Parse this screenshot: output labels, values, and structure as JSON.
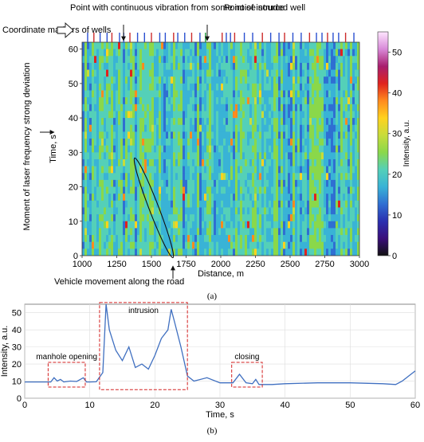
{
  "colors": {
    "series": "#3f6fc0",
    "callout_box": "#d42020",
    "marker_blue": "#2a4fd0",
    "marker_red": "#cc2b2b",
    "marker_green": "#1f9a3a",
    "grid": "#dddddd"
  },
  "annotations_top": {
    "markers_label": "Coordinate markers of wells",
    "noise_point": "Point with continuous vibration from some noise source",
    "intruded_well": "Point of intruded well",
    "laser_deviation": "Moment of laser frequency strong deviation",
    "vehicle": "Vehicle movement along the road"
  },
  "panel_labels": {
    "a": "(a)",
    "b": "(b)"
  },
  "chart_data": [
    {
      "type": "heatmap",
      "xlabel": "Distance, m",
      "ylabel": "Time, s",
      "colorbar_label": "Intensity, a.u.",
      "xlim": [
        1000,
        3000
      ],
      "ylim": [
        0,
        62
      ],
      "clim": [
        0,
        55
      ],
      "xticks": [
        1000,
        1250,
        1500,
        1750,
        2000,
        2250,
        2500,
        2750,
        3000
      ],
      "yticks": [
        0,
        10,
        20,
        30,
        40,
        50,
        60
      ],
      "cticks": [
        0,
        10,
        20,
        30,
        40,
        50
      ],
      "colormap": [
        "#111111",
        "#3a0e7a",
        "#2a2fb0",
        "#2f6fd2",
        "#39b3d6",
        "#54d0b8",
        "#8ad84a",
        "#c8dc3a",
        "#ffd21e",
        "#ff8a1e",
        "#e0221e",
        "#a81e6e",
        "#d88ad8",
        "#ffe6ff"
      ],
      "well_markers_m": [
        1040,
        1085,
        1130,
        1180,
        1215,
        1270,
        1300,
        1345,
        1400,
        1450,
        1500,
        1560,
        1600,
        1660,
        1690,
        1740,
        1790,
        1850,
        1890,
        2010,
        2040,
        2070,
        2100,
        2170,
        2230,
        2300,
        2360,
        2420,
        2460,
        2520,
        2580,
        2640,
        2690,
        2730,
        2770,
        2810,
        2850,
        2900,
        2960
      ],
      "noise_source_m": 1300,
      "intruded_well_m": 1890,
      "laser_deviation_s": 33,
      "vehicle_track": {
        "start": [
          1420,
          27
        ],
        "end": [
          1660,
          0
        ]
      }
    },
    {
      "type": "line",
      "xlabel": "Time, s",
      "ylabel": "Intensity, a.u.",
      "xlim": [
        0,
        60
      ],
      "ylim": [
        0,
        55
      ],
      "xticks": [
        0,
        10,
        20,
        30,
        40,
        50,
        60
      ],
      "yticks": [
        0,
        10,
        20,
        30,
        40,
        50
      ],
      "grid": true,
      "series": [
        {
          "x": [
            0,
            4,
            4.5,
            5,
            5.5,
            6,
            7,
            8,
            9,
            9.5,
            10,
            11,
            12,
            12.5,
            13,
            14,
            15,
            16,
            17,
            18,
            19,
            20,
            21,
            22,
            22.5,
            23,
            24,
            25,
            26,
            28,
            30,
            32,
            33,
            34,
            35,
            35.5,
            36,
            38,
            40,
            45,
            50,
            55,
            57,
            58,
            59,
            60
          ],
          "y": [
            9.5,
            9.5,
            12,
            10,
            11,
            9.5,
            10,
            9.8,
            12,
            9.5,
            9.5,
            9.6,
            15,
            55,
            40,
            28,
            22,
            30,
            18,
            20,
            17,
            25,
            35,
            40,
            52,
            45,
            30,
            13,
            10,
            12,
            9,
            9,
            14,
            9,
            8.5,
            11,
            8,
            8,
            8.5,
            9,
            9,
            8.5,
            8,
            10,
            13,
            16
          ]
        }
      ],
      "callouts": [
        {
          "label": "manhole opening",
          "x_range": [
            3.6,
            9.3
          ],
          "y_range": [
            6.5,
            21
          ]
        },
        {
          "label": "intrusion",
          "x_range": [
            11.5,
            25
          ],
          "y_range": [
            5,
            56
          ]
        },
        {
          "label": "closing",
          "x_range": [
            31.8,
            36.5
          ],
          "y_range": [
            6.5,
            21
          ]
        }
      ]
    }
  ]
}
